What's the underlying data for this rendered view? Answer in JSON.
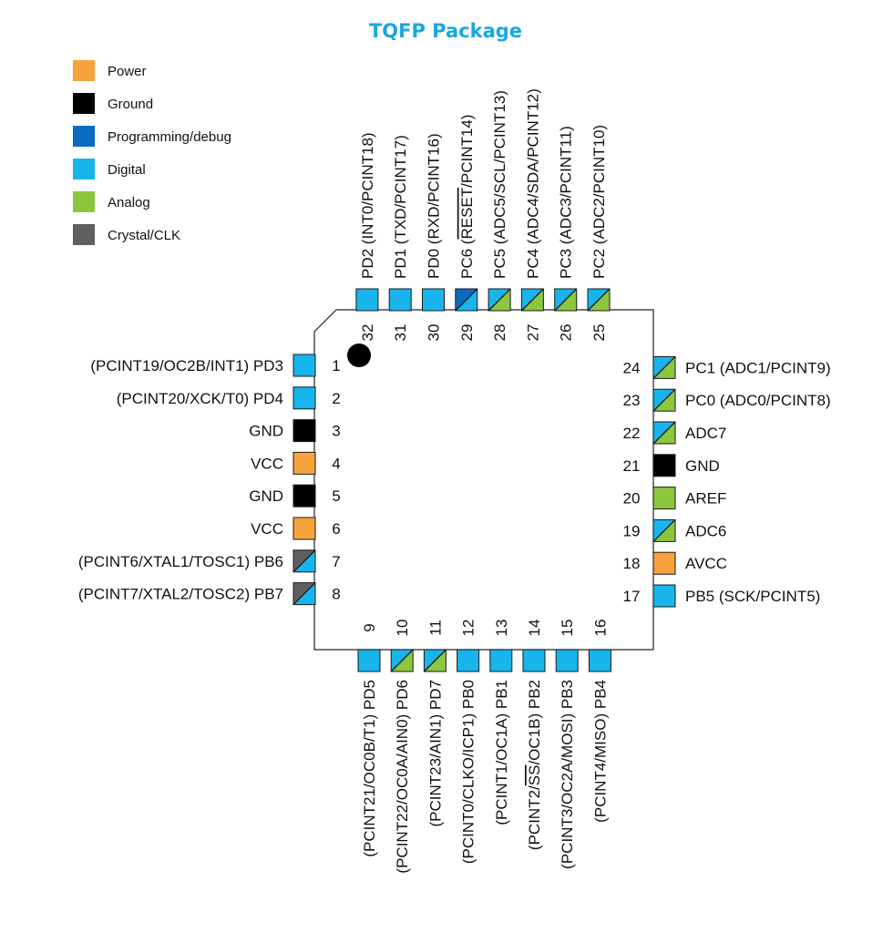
{
  "title": "TQFP Package",
  "colors": {
    "Power": "#f7a23b",
    "Ground": "#000000",
    "Programming/debug": "#0a6cbf",
    "Digital": "#18b4ec",
    "Analog": "#8cc63f",
    "Crystal/CLK": "#5f5f5f"
  },
  "legend": [
    {
      "label": "Power",
      "color": "#f7a23b"
    },
    {
      "label": "Ground",
      "color": "#000000"
    },
    {
      "label": "Programming/debug",
      "color": "#0a6cbf"
    },
    {
      "label": "Digital",
      "color": "#18b4ec"
    },
    {
      "label": "Analog",
      "color": "#8cc63f"
    },
    {
      "label": "Crystal/CLK",
      "color": "#5f5f5f"
    }
  ],
  "pins": {
    "left": [
      {
        "num": "1",
        "label": "(PCINT19/OC2B/INT1) PD3",
        "types": [
          "Digital"
        ]
      },
      {
        "num": "2",
        "label": "(PCINT20/XCK/T0) PD4",
        "types": [
          "Digital"
        ]
      },
      {
        "num": "3",
        "label": "GND",
        "types": [
          "Ground"
        ]
      },
      {
        "num": "4",
        "label": "VCC",
        "types": [
          "Power"
        ]
      },
      {
        "num": "5",
        "label": "GND",
        "types": [
          "Ground"
        ]
      },
      {
        "num": "6",
        "label": "VCC",
        "types": [
          "Power"
        ]
      },
      {
        "num": "7",
        "label": "(PCINT6/XTAL1/TOSC1) PB6",
        "types": [
          "Digital",
          "Crystal/CLK"
        ]
      },
      {
        "num": "8",
        "label": "(PCINT7/XTAL2/TOSC2) PB7",
        "types": [
          "Digital",
          "Crystal/CLK"
        ]
      }
    ],
    "bottom": [
      {
        "num": "9",
        "label": "(PCINT21/OC0B/T1) PD5",
        "types": [
          "Digital"
        ]
      },
      {
        "num": "10",
        "label": "(PCINT22/OC0A/AIN0) PD6",
        "types": [
          "Analog",
          "Digital"
        ]
      },
      {
        "num": "11",
        "label": "(PCINT23/AIN1) PD7",
        "types": [
          "Analog",
          "Digital"
        ]
      },
      {
        "num": "12",
        "label": "(PCINT0/CLKO/ICP1) PB0",
        "types": [
          "Digital"
        ]
      },
      {
        "num": "13",
        "label": "(PCINT1/OC1A) PB1",
        "types": [
          "Digital"
        ]
      },
      {
        "num": "14",
        "label": "(PCINT2/SS/OC1B) PB2",
        "types": [
          "Digital"
        ]
      },
      {
        "num": "15",
        "label": "(PCINT3/OC2A/MOSI) PB3",
        "types": [
          "Digital"
        ]
      },
      {
        "num": "16",
        "label": "(PCINT4/MISO) PB4",
        "types": [
          "Digital"
        ]
      }
    ],
    "right": [
      {
        "num": "17",
        "label": "PB5 (SCK/PCINT5)",
        "types": [
          "Digital"
        ]
      },
      {
        "num": "18",
        "label": "AVCC",
        "types": [
          "Power"
        ]
      },
      {
        "num": "19",
        "label": "ADC6",
        "types": [
          "Analog",
          "Digital"
        ]
      },
      {
        "num": "20",
        "label": "AREF",
        "types": [
          "Analog"
        ]
      },
      {
        "num": "21",
        "label": "GND",
        "types": [
          "Ground"
        ]
      },
      {
        "num": "22",
        "label": "ADC7",
        "types": [
          "Analog",
          "Digital"
        ]
      },
      {
        "num": "23",
        "label": "PC0 (ADC0/PCINT8)",
        "types": [
          "Analog",
          "Digital"
        ]
      },
      {
        "num": "24",
        "label": "PC1 (ADC1/PCINT9)",
        "types": [
          "Analog",
          "Digital"
        ]
      }
    ],
    "top": [
      {
        "num": "25",
        "label": "PC2 (ADC2/PCINT10)",
        "types": [
          "Analog",
          "Digital"
        ]
      },
      {
        "num": "26",
        "label": "PC3 (ADC3/PCINT11)",
        "types": [
          "Analog",
          "Digital"
        ]
      },
      {
        "num": "27",
        "label": "PC4 (ADC4/SDA/PCINT12)",
        "types": [
          "Analog",
          "Digital"
        ]
      },
      {
        "num": "28",
        "label": "PC5 (ADC5/SCL/PCINT13)",
        "types": [
          "Analog",
          "Digital"
        ]
      },
      {
        "num": "29",
        "label": "PC6 (RESET/PCINT14)",
        "types": [
          "Digital",
          "Programming/debug"
        ]
      },
      {
        "num": "30",
        "label": "PD0 (RXD/PCINT16)",
        "types": [
          "Digital"
        ]
      },
      {
        "num": "31",
        "label": "PD1 (TXD/PCINT17)",
        "types": [
          "Digital"
        ]
      },
      {
        "num": "32",
        "label": "PD2 (INT0/PCINT18)",
        "types": [
          "Digital"
        ]
      }
    ]
  }
}
